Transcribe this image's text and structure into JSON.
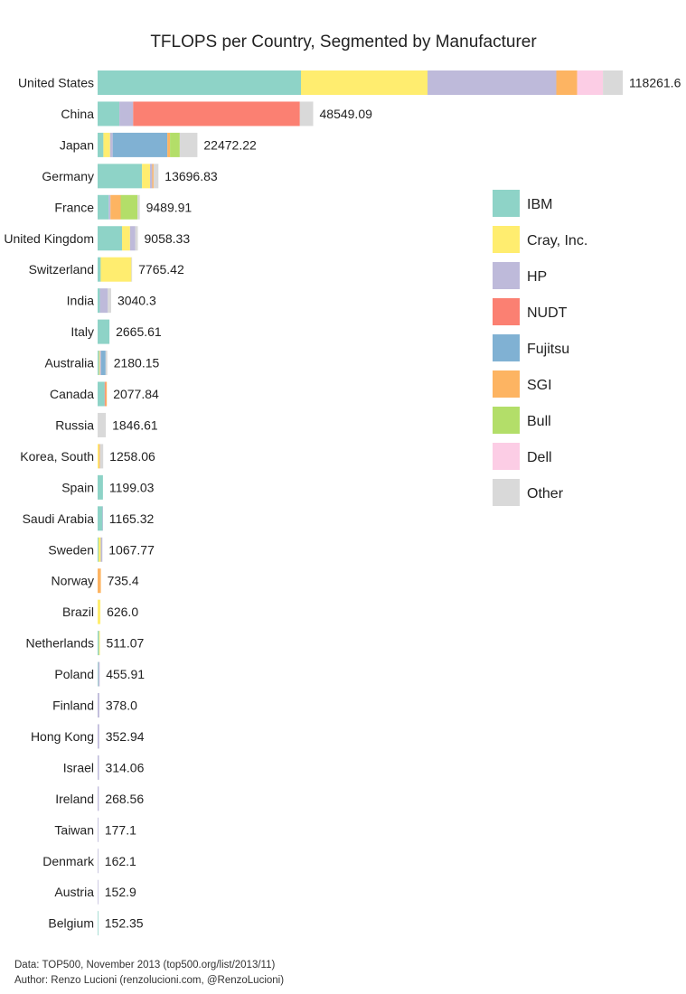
{
  "chart_data": {
    "type": "bar",
    "orientation": "horizontal",
    "stacked": true,
    "title": "TFLOPS per Country, Segmented by Manufacturer",
    "xlabel": "",
    "ylabel": "",
    "xlim": [
      0,
      118261.6
    ],
    "grid": false,
    "legend_position": "right",
    "categories": [
      "United States",
      "China",
      "Japan",
      "Germany",
      "France",
      "United Kingdom",
      "Switzerland",
      "India",
      "Italy",
      "Australia",
      "Canada",
      "Russia",
      "Korea, South",
      "Spain",
      "Saudi Arabia",
      "Sweden",
      "Norway",
      "Brazil",
      "Netherlands",
      "Poland",
      "Finland",
      "Hong Kong",
      "Israel",
      "Ireland",
      "Taiwan",
      "Denmark",
      "Austria",
      "Belgium"
    ],
    "totals": [
      "118261.6",
      "48549.09",
      "22472.22",
      "13696.83",
      "9489.91",
      "9058.33",
      "7765.42",
      "3040.3",
      "2665.61",
      "2180.15",
      "2077.84",
      "1846.61",
      "1258.06",
      "1199.03",
      "1165.32",
      "1067.77",
      "735.4",
      "626.0",
      "511.07",
      "455.91",
      "378.0",
      "352.94",
      "314.06",
      "268.56",
      "177.1",
      "162.1",
      "152.9",
      "152.35"
    ],
    "series": [
      {
        "name": "IBM",
        "color": "#8ed3c7",
        "values": [
          45800,
          4900,
          1300,
          10000,
          2500,
          5500,
          700,
          500,
          2665.61,
          300,
          1600,
          0,
          0,
          1199.03,
          1100,
          200,
          0,
          0,
          300,
          150,
          0,
          0,
          0,
          0,
          0,
          0,
          0,
          152.35
        ]
      },
      {
        "name": "Cray, Inc.",
        "color": "#ffed6f",
        "values": [
          28500,
          0,
          1500,
          1800,
          0,
          1800,
          6900,
          0,
          0,
          200,
          0,
          0,
          300,
          0,
          0,
          500,
          0,
          626.0,
          211.07,
          0,
          0,
          0,
          0,
          0,
          0,
          0,
          0,
          0
        ]
      },
      {
        "name": "HP",
        "color": "#bebada",
        "values": [
          29000,
          3100,
          600,
          500,
          400,
          1200,
          0,
          1800,
          0,
          300,
          0,
          0,
          0,
          0,
          65.32,
          367.77,
          0,
          0,
          0,
          305.91,
          378.0,
          352.94,
          314.06,
          268.56,
          177.1,
          162.1,
          152.9,
          0
        ]
      },
      {
        "name": "NUDT",
        "color": "#fb8072",
        "values": [
          0,
          37549.09,
          0,
          0,
          0,
          0,
          0,
          0,
          0,
          0,
          200,
          0,
          0,
          0,
          0,
          0,
          0,
          0,
          0,
          0,
          0,
          0,
          0,
          0,
          0,
          0,
          0,
          0
        ]
      },
      {
        "name": "Fujitsu",
        "color": "#80b1d3",
        "values": [
          0,
          0,
          12300,
          0,
          0,
          0,
          0,
          0,
          0,
          1000,
          0,
          0,
          0,
          0,
          0,
          0,
          0,
          0,
          0,
          0,
          0,
          0,
          0,
          0,
          0,
          0,
          0,
          0
        ]
      },
      {
        "name": "SGI",
        "color": "#fdb462",
        "values": [
          4700,
          0,
          600,
          300,
          2289.91,
          0,
          0,
          0,
          0,
          0,
          277.84,
          0,
          200,
          0,
          0,
          0,
          735.4,
          0,
          0,
          0,
          0,
          0,
          0,
          0,
          0,
          0,
          0,
          0
        ]
      },
      {
        "name": "Bull",
        "color": "#b3de69",
        "values": [
          0,
          0,
          2200,
          0,
          3800,
          0,
          0,
          0,
          0,
          0,
          0,
          0,
          0,
          0,
          0,
          0,
          0,
          0,
          0,
          0,
          0,
          0,
          0,
          0,
          0,
          0,
          0,
          0
        ]
      },
      {
        "name": "Dell",
        "color": "#fccde5",
        "values": [
          5800,
          0,
          0,
          0,
          0,
          0,
          0,
          0,
          0,
          0,
          0,
          0,
          0,
          0,
          0,
          0,
          0,
          0,
          0,
          0,
          0,
          0,
          0,
          0,
          0,
          0,
          0,
          0
        ]
      },
      {
        "name": "Other",
        "color": "#d9d9d9",
        "values": [
          4461.6,
          3000,
          3972.22,
          1096.83,
          500,
          558.33,
          165.42,
          740.3,
          0,
          380.15,
          0,
          1846.61,
          758.06,
          0,
          0,
          0,
          0,
          0,
          0,
          0,
          0,
          0,
          0,
          0,
          0,
          0,
          0,
          0
        ]
      }
    ]
  },
  "footer": {
    "data": "Data: TOP500, November 2013 (top500.org/list/2013/11)",
    "author": "Author: Renzo Lucioni (renzolucioni.com, @RenzoLucioni)"
  }
}
